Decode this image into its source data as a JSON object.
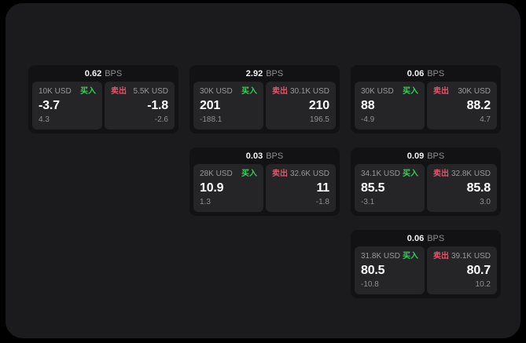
{
  "labels": {
    "bps_unit": "BPS",
    "buy": "买入",
    "sell": "卖出"
  },
  "colors": {
    "buy_green": "#32d158",
    "sell_red": "#e0556a"
  },
  "cards": [
    {
      "row": 1,
      "col": 1,
      "bps": "0.62",
      "buy": {
        "amount": "10K USD",
        "value": "-3.7",
        "delta": "4.3"
      },
      "sell": {
        "amount": "5.5K USD",
        "value": "-1.8",
        "delta": "-2.6"
      }
    },
    {
      "row": 1,
      "col": 2,
      "bps": "2.92",
      "buy": {
        "amount": "30K USD",
        "value": "201",
        "delta": "-188.1"
      },
      "sell": {
        "amount": "30.1K USD",
        "value": "210",
        "delta": "196.5"
      }
    },
    {
      "row": 1,
      "col": 3,
      "bps": "0.06",
      "buy": {
        "amount": "30K USD",
        "value": "88",
        "delta": "-4.9"
      },
      "sell": {
        "amount": "30K USD",
        "value": "88.2",
        "delta": "4.7"
      }
    },
    {
      "row": 2,
      "col": 2,
      "bps": "0.03",
      "buy": {
        "amount": "28K USD",
        "value": "10.9",
        "delta": "1.3"
      },
      "sell": {
        "amount": "32.6K USD",
        "value": "11",
        "delta": "-1.8"
      }
    },
    {
      "row": 2,
      "col": 3,
      "bps": "0.09",
      "buy": {
        "amount": "34.1K USD",
        "value": "85.5",
        "delta": "-3.1"
      },
      "sell": {
        "amount": "32.8K USD",
        "value": "85.8",
        "delta": "3.0"
      }
    },
    {
      "row": 3,
      "col": 3,
      "bps": "0.06",
      "buy": {
        "amount": "31.8K USD",
        "value": "80.5",
        "delta": "-10.8"
      },
      "sell": {
        "amount": "39.1K USD",
        "value": "80.7",
        "delta": "10.2"
      }
    }
  ]
}
